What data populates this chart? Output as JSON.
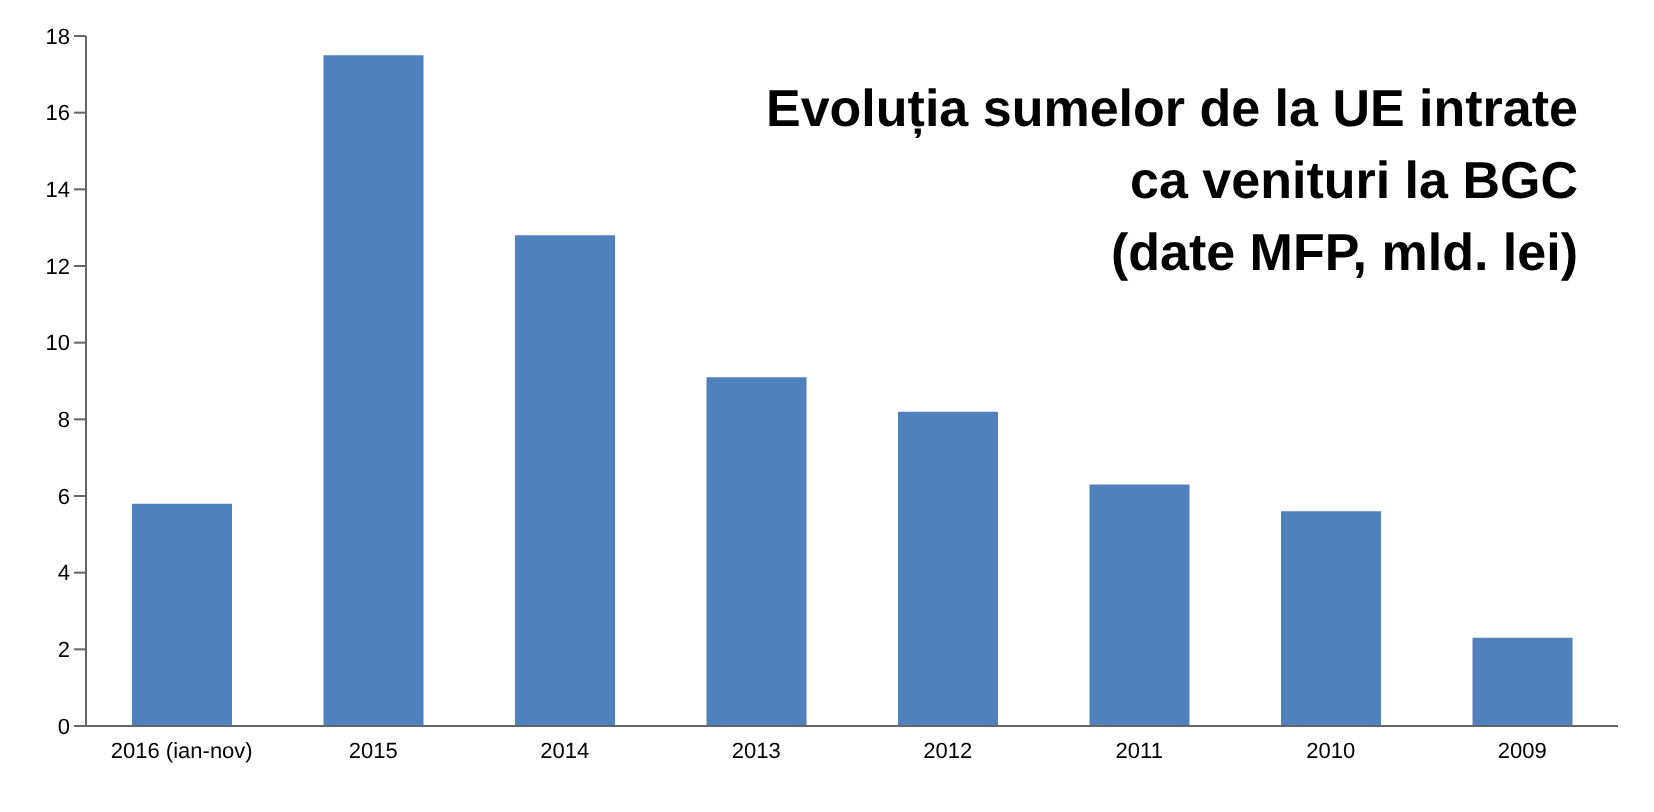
{
  "chart_data": {
    "type": "bar",
    "title": "Evoluția sumelor de la UE intrate\nca venituri la BGC\n(date MFP, mld. lei)",
    "categories": [
      "2016 (ian-nov)",
      "2015",
      "2014",
      "2013",
      "2012",
      "2011",
      "2010",
      "2009"
    ],
    "values": [
      5.8,
      17.5,
      12.8,
      9.1,
      8.2,
      6.3,
      5.6,
      2.3
    ],
    "color": "#4f81bd",
    "ylim": [
      0,
      18
    ],
    "yticks": [
      0,
      2,
      4,
      6,
      8,
      10,
      12,
      14,
      16,
      18
    ],
    "grid": false,
    "legend": false
  }
}
